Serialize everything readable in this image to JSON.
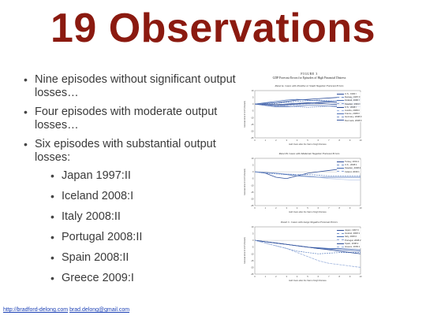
{
  "title": "19 Observations",
  "bullets": [
    "Nine episodes without significant output losses…",
    "Four episodes with moderate output losses…",
    "Six episodes with substantial output losses:"
  ],
  "sub_bullets": [
    "Japan 1997:II",
    "Iceland 2008:I",
    "Italy 2008:II",
    "Portugal 2008:II",
    "Spain 2008:II",
    "Greece 2009:I"
  ],
  "footer": {
    "site": "http://bradford-delong.com",
    "email": "brad.delong@gmail.com"
  },
  "figure": {
    "label": "FIGURE 3",
    "caption": "GDP Forecast Errors for Episodes of High Financial Distress",
    "xlabel": "Half-Years after the Start of High Distress",
    "ylabel": "Forecast Error in GDP (Percent)",
    "xticks": [
      "0",
      "1",
      "2",
      "3",
      "4",
      "5",
      "6",
      "7",
      "8",
      "9",
      "10"
    ],
    "line_color": "#3a5fa8",
    "panels": [
      {
        "title": "Panel A. Cases with Positive or Small Negative Forecast Errors",
        "yticks": [
          "10",
          "5",
          "0",
          "-5",
          "-10",
          "-15",
          "-20",
          "-25"
        ],
        "legend": [
          "U.S., 1990:I",
          "Norway, 1987:II",
          "Finland, 1990:I",
          "Sweden, 1991:I",
          "U.S., 2008:I",
          "Austria, 2008:II",
          "France, 2008:II",
          "Germany, 2008:II",
          "Denmark, 2008:II"
        ],
        "series": [
          [
            0,
            0.5,
            1,
            2,
            3,
            3.5,
            4,
            4.5,
            5,
            4.5,
            4
          ],
          [
            0,
            0,
            0.5,
            1.5,
            2,
            2.5,
            3,
            2.5,
            2,
            2.5,
            3
          ],
          [
            0,
            1,
            2,
            3,
            3.5,
            3,
            2.5,
            2,
            2.5,
            3,
            3
          ],
          [
            0,
            0.5,
            1,
            1,
            0.5,
            1,
            1.5,
            2,
            2.5,
            2,
            1.5
          ],
          [
            0,
            -0.5,
            -1,
            -0.5,
            0,
            0.5,
            1,
            1.5,
            1,
            0.5,
            0.5
          ],
          [
            0,
            -1,
            -1.5,
            -1,
            -0.5,
            0,
            0.5,
            0,
            -0.5,
            -1,
            -1.5
          ],
          [
            0,
            -1,
            -2,
            -2,
            -1.5,
            -1,
            -1,
            -1.5,
            -2,
            -2,
            -2
          ],
          [
            0,
            -0.5,
            -1,
            -1.5,
            -2,
            -2.5,
            -2,
            -1.5,
            -1,
            -1.5,
            -2
          ],
          [
            0,
            0,
            -0.5,
            0,
            0.5,
            1,
            0.5,
            0,
            -0.5,
            0,
            0
          ]
        ]
      },
      {
        "title": "Panel B. Cases with Moderate Negative Forecast Errors",
        "yticks": [
          "10",
          "5",
          "0",
          "-5",
          "-10",
          "-15",
          "-20",
          "-25"
        ],
        "legend": [
          "Turkey, 2001:1",
          "U.K., 2008:1",
          "Sweden, 2008:2",
          "Ireland, 2009:1"
        ],
        "series": [
          [
            0,
            -1,
            -4,
            -5,
            -3,
            -1,
            0,
            1,
            2,
            2,
            2
          ],
          [
            0,
            -1,
            -1.5,
            -2,
            -2,
            -2,
            -2.5,
            -3,
            -3,
            -3,
            -3
          ],
          [
            0,
            -0.5,
            -1,
            -2,
            -3,
            -3.5,
            -4,
            -4,
            -4,
            -4,
            -4
          ],
          [
            0,
            -0.5,
            -1,
            -1.5,
            -2,
            -3,
            -4,
            -5,
            -5.5,
            -6,
            -6
          ]
        ]
      },
      {
        "title": "Panel C. Cases with Large Negative Forecast Errors",
        "yticks": [
          "10",
          "5",
          "0",
          "-5",
          "-10",
          "-15",
          "-20",
          "-25"
        ],
        "legend": [
          "Japan, 1997:II",
          "Iceland, 2008:1",
          "Italy, 2008:2",
          "Portugal, 2008:2",
          "Spain, 2008:2",
          "Greece, 2009:1"
        ],
        "series": [
          [
            0,
            -1,
            -2,
            -3,
            -4,
            -5,
            -6,
            -6.5,
            -7,
            -7.5,
            -8
          ],
          [
            0,
            -2,
            -4,
            -6,
            -8,
            -9,
            -10,
            -9.5,
            -9,
            -9,
            -9
          ],
          [
            0,
            -1,
            -2,
            -3,
            -4,
            -5,
            -5.5,
            -6,
            -6,
            -6.5,
            -7
          ],
          [
            0,
            -1,
            -2,
            -3,
            -4,
            -5,
            -6,
            -6.5,
            -7,
            -7.5,
            -8
          ],
          [
            0,
            -1,
            -2,
            -3,
            -4,
            -5,
            -6,
            -7,
            -8,
            -9,
            -10
          ],
          [
            0,
            -2,
            -4,
            -6,
            -9,
            -12,
            -15,
            -17,
            -18,
            -19,
            -20
          ]
        ]
      }
    ]
  }
}
